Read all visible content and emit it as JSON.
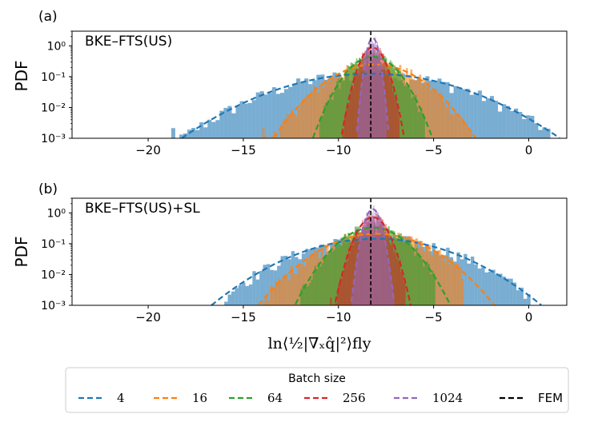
{
  "chart_data": {
    "type": "histogram",
    "xlabel": "ln⟨½|∇ₓq̂|²⟩fly",
    "x_range": [
      -24,
      2
    ],
    "x_ticks": [
      -20,
      -15,
      -10,
      -5,
      0
    ],
    "x_tick_labels": [
      "−20",
      "−15",
      "−10",
      "−5",
      "0"
    ],
    "y_scale": "log",
    "y_range": [
      0.001,
      3
    ],
    "y_ticks": [
      0.001,
      0.01,
      0.1,
      1
    ],
    "y_tick_labels": [
      "10⁻³",
      "10⁻²",
      "10⁻¹",
      "10⁰"
    ],
    "legend": {
      "title": "Batch size",
      "placement": "bottom",
      "entries": [
        {
          "label": "4",
          "color": "#1f77b4"
        },
        {
          "label": "16",
          "color": "#ff7f0e"
        },
        {
          "label": "64",
          "color": "#2ca02c"
        },
        {
          "label": "256",
          "color": "#d62728"
        },
        {
          "label": "1024",
          "color": "#9467bd"
        },
        {
          "label": "FEM",
          "color": "#000000"
        }
      ]
    },
    "panels": [
      {
        "panel_label": "(a)",
        "title": "BKE–FTS(US)",
        "ylabel": "PDF",
        "fem_x": -8.3,
        "series": [
          {
            "batch": 4,
            "mean": -8.3,
            "std": 3.2,
            "color": "#1f77b4",
            "range": [
              -19,
              1
            ]
          },
          {
            "batch": 16,
            "mean": -8.1,
            "std": 1.6,
            "color": "#ff7f0e",
            "range": [
              -14,
              -3
            ]
          },
          {
            "batch": 64,
            "mean": -8.2,
            "std": 0.9,
            "color": "#2ca02c",
            "range": [
              -11,
              -5.5
            ]
          },
          {
            "batch": 256,
            "mean": -8.2,
            "std": 0.45,
            "color": "#d62728",
            "range": [
              -9.8,
              -6.8
            ]
          },
          {
            "batch": 1024,
            "mean": -8.2,
            "std": 0.22,
            "color": "#9467bd",
            "range": [
              -9,
              -7.5
            ]
          }
        ]
      },
      {
        "panel_label": "(b)",
        "title": "BKE–FTS(US)+SL",
        "ylabel": "PDF",
        "fem_x": -8.3,
        "series": [
          {
            "batch": 4,
            "mean": -8.0,
            "std": 2.75,
            "color": "#1f77b4",
            "range": [
              -16,
              0
            ]
          },
          {
            "batch": 16,
            "mean": -8.0,
            "std": 1.9,
            "color": "#ff7f0e",
            "range": [
              -14,
              -3.5
            ]
          },
          {
            "batch": 64,
            "mean": -8.2,
            "std": 1.2,
            "color": "#2ca02c",
            "range": [
              -12,
              -5
            ]
          },
          {
            "batch": 256,
            "mean": -8.2,
            "std": 0.55,
            "color": "#d62728",
            "range": [
              -10.5,
              -6.5
            ]
          },
          {
            "batch": 1024,
            "mean": -8.2,
            "std": 0.3,
            "color": "#9467bd",
            "range": [
              -9.3,
              -7
            ]
          }
        ]
      }
    ]
  }
}
